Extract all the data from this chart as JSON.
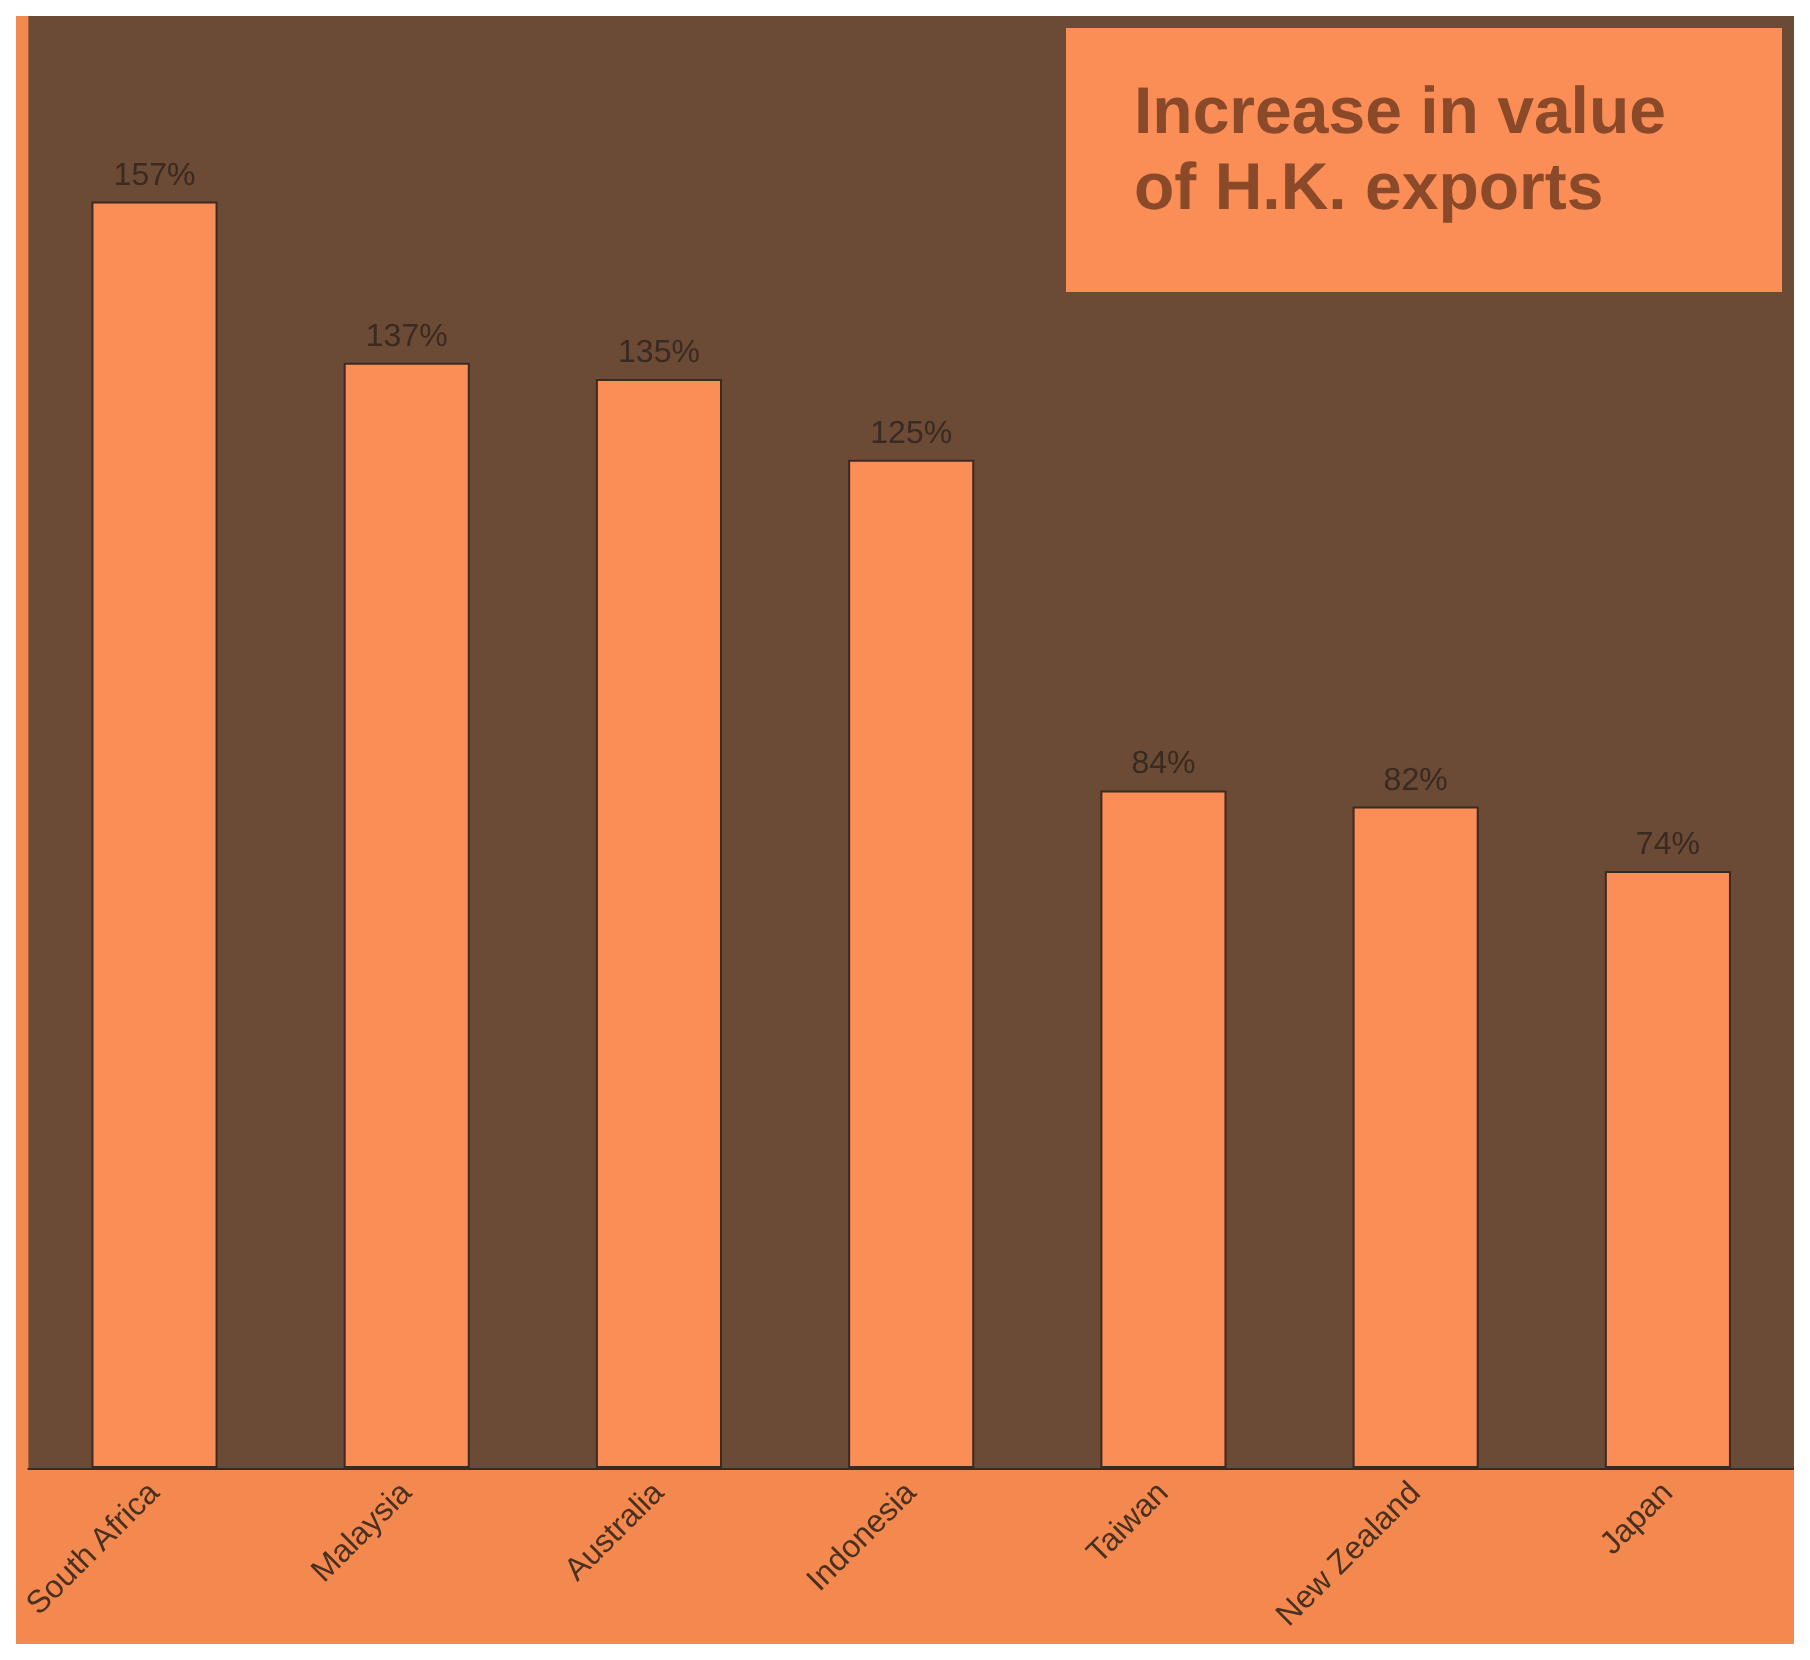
{
  "chart_data": {
    "type": "bar",
    "title": "Increase in value of H.K. exports",
    "categories": [
      "South Africa",
      "Malaysia",
      "Australia",
      "Indonesia",
      "Taiwan",
      "New Zealand",
      "Japan"
    ],
    "values": [
      157,
      137,
      135,
      125,
      84,
      82,
      74
    ],
    "value_labels": [
      "157%",
      "137%",
      "135%",
      "125%",
      "84%",
      "82%",
      "74%"
    ],
    "color": "#fb8d57"
  }
}
